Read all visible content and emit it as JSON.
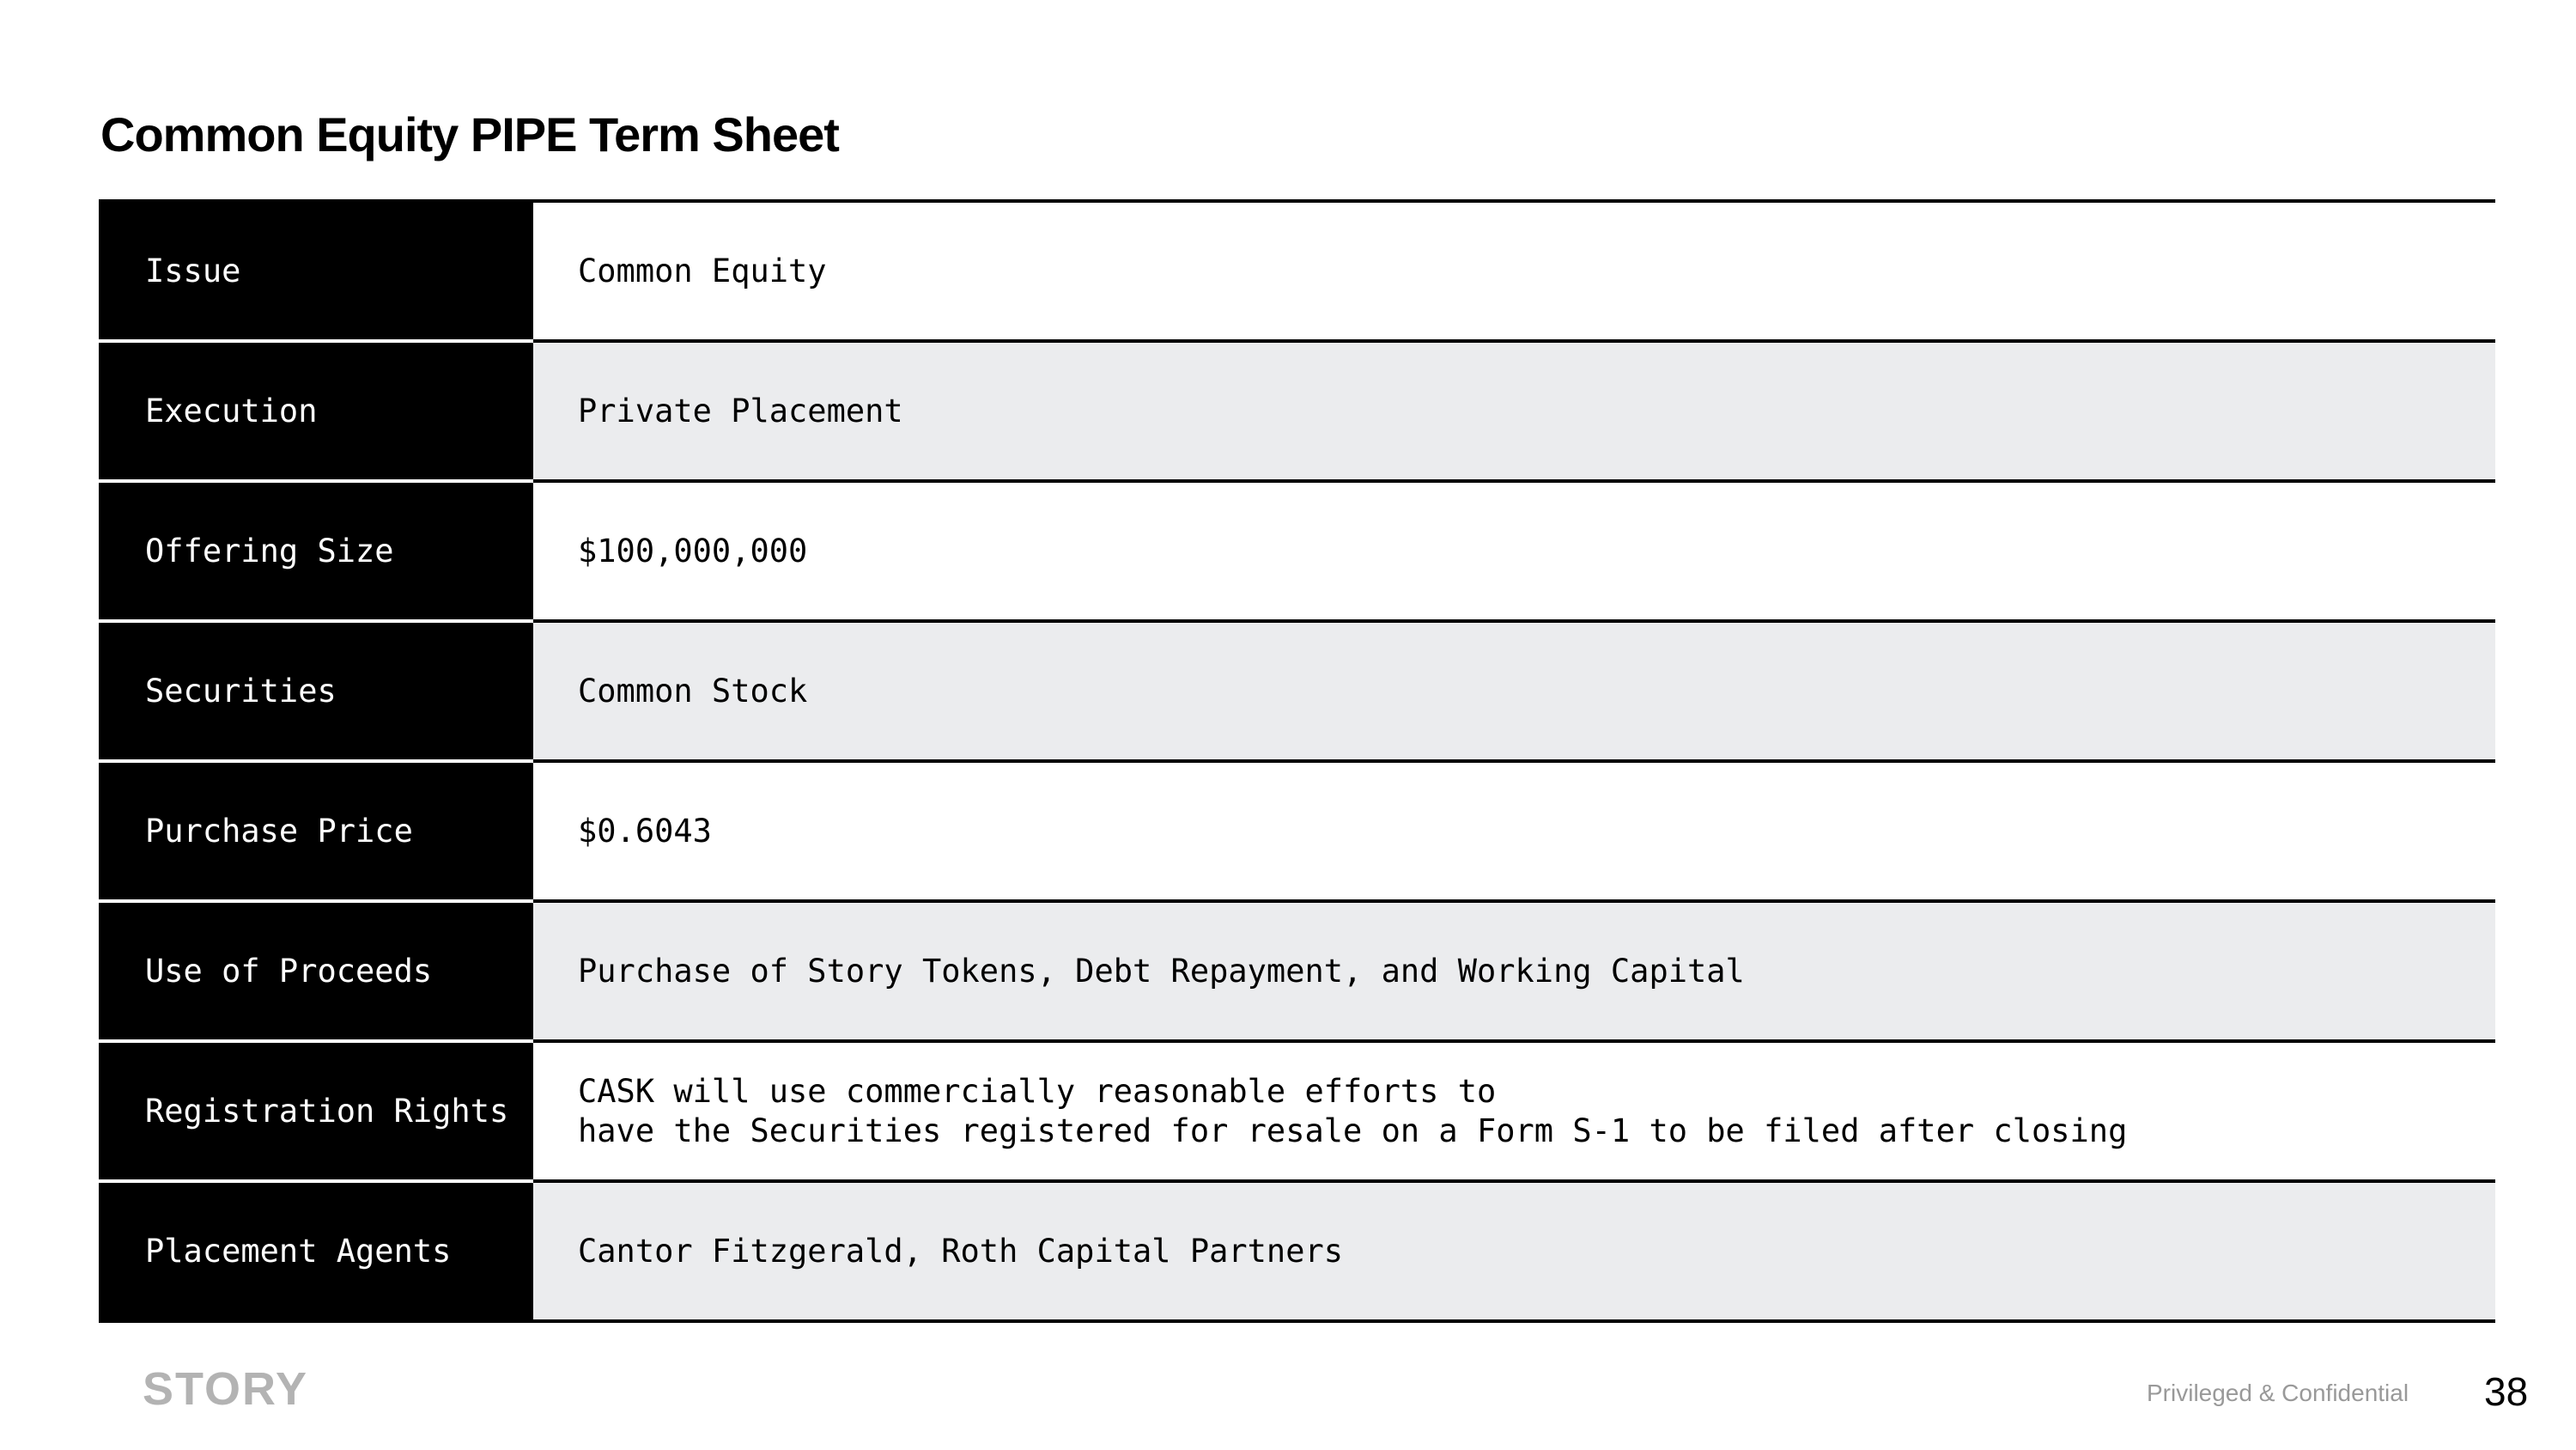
{
  "title": "Common Equity PIPE Term Sheet",
  "rows": [
    {
      "label": "Issue",
      "lines": [
        "Common Equity"
      ]
    },
    {
      "label": "Execution",
      "lines": [
        "Private Placement"
      ]
    },
    {
      "label": "Offering Size",
      "lines": [
        "$100,000,000"
      ]
    },
    {
      "label": "Securities",
      "lines": [
        "Common Stock"
      ]
    },
    {
      "label": "Purchase Price",
      "lines": [
        "$0.6043"
      ]
    },
    {
      "label": "Use of Proceeds",
      "lines": [
        "Purchase of Story Tokens, Debt Repayment, and Working Capital"
      ]
    },
    {
      "label": "Registration Rights",
      "lines": [
        "CASK will use commercially reasonable efforts to",
        "have the Securities registered for resale on a Form S-1 to be filed after closing"
      ]
    },
    {
      "label": "Placement Agents",
      "lines": [
        "Cantor Fitzgerald, Roth Capital Partners"
      ]
    }
  ],
  "footer": {
    "logo": "STORY",
    "confidential": "Privileged & Confidential",
    "page_number": "38"
  }
}
